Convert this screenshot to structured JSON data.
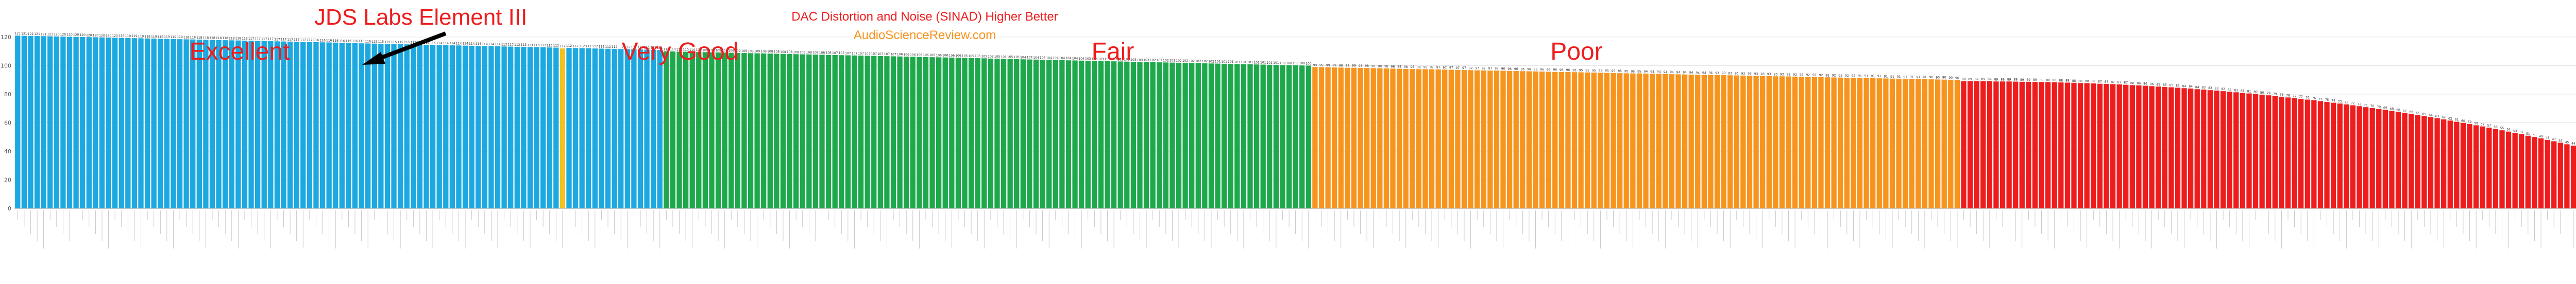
{
  "chart_data": {
    "type": "bar",
    "title": "DAC Distortion and Noise (SINAD) Higher Better",
    "subtitle": "AudioScienceReview.com",
    "ylabel": "",
    "xlabel": "",
    "ylim": [
      0,
      120
    ],
    "yticks": [
      0,
      20,
      40,
      60,
      80,
      100,
      120
    ],
    "grid": true,
    "tiers": [
      {
        "name": "Excellent",
        "color": "#1CA8E0"
      },
      {
        "name": "Very Good",
        "color": "#1EA84C"
      },
      {
        "name": "Fair",
        "color": "#F7941D"
      },
      {
        "name": "Poor",
        "color": "#EE1C1C"
      }
    ],
    "highlight": {
      "label": "JDS Labs Element III",
      "color": "#F3C21B"
    },
    "tier_segments": [
      {
        "tier": 0,
        "count": 100,
        "start": 121,
        "end": 111
      },
      {
        "tier": 1,
        "count": 100,
        "start": 110,
        "end": 100
      },
      {
        "tier": 2,
        "count": 100,
        "start": 99,
        "end": 90
      },
      {
        "tier": 3,
        "count": 103,
        "start": 89,
        "end": 35
      }
    ],
    "highlight_index": 84,
    "highlight_value": 112
  },
  "colors": {
    "grid": "#e6e6e6",
    "axis": "#999999",
    "title": "#ee1c1c",
    "subtitle": "#f7941d",
    "arrow": "#000000"
  }
}
